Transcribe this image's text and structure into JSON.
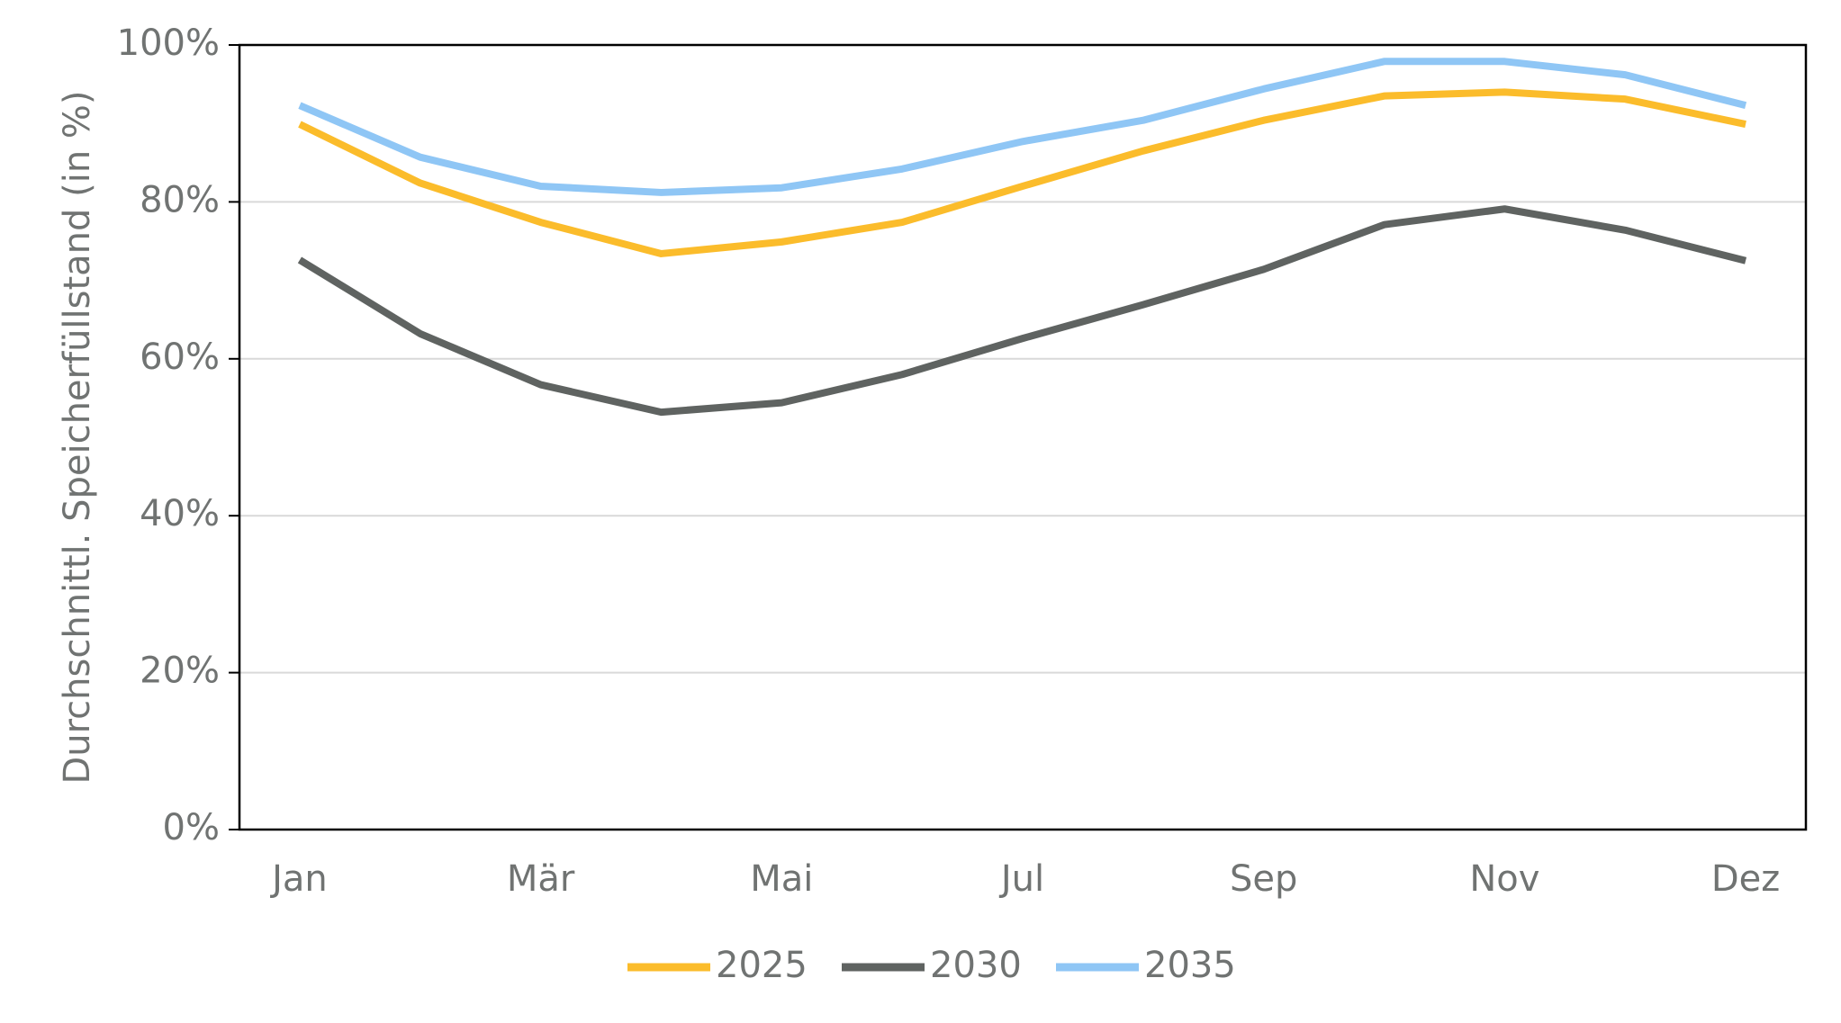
{
  "chart_data": {
    "type": "line",
    "y_axis_label": "Durchschnittl. Speicherfüllstand (in %)",
    "categories": [
      "Jan",
      null,
      "Mär",
      null,
      "Mai",
      null,
      "Jul",
      null,
      "Sep",
      null,
      "Nov",
      null,
      "Dez"
    ],
    "series": [
      {
        "name": "2025",
        "color": "#fbbc2b",
        "values": [
          89.9,
          82.4,
          77.4,
          73.4,
          74.9,
          77.4,
          82.0,
          86.5,
          90.4,
          93.5,
          94.0,
          93.1,
          89.9
        ]
      },
      {
        "name": "2030",
        "color": "#5f6361",
        "values": [
          72.6,
          63.2,
          56.7,
          53.2,
          54.4,
          58.0,
          62.6,
          66.9,
          71.4,
          77.1,
          79.1,
          76.4,
          72.5
        ]
      },
      {
        "name": "2035",
        "color": "#8fc6f5",
        "values": [
          92.3,
          85.7,
          82.0,
          81.2,
          81.8,
          84.2,
          87.7,
          90.4,
          94.4,
          97.9,
          97.9,
          96.2,
          92.3
        ]
      }
    ],
    "ylim": [
      0,
      100
    ],
    "yticks": [
      {
        "value": 0,
        "label": "0%"
      },
      {
        "value": 20,
        "label": "20%"
      },
      {
        "value": 40,
        "label": "40%"
      },
      {
        "value": 60,
        "label": "60%"
      },
      {
        "value": 80,
        "label": "80%"
      },
      {
        "value": 100,
        "label": "100%"
      }
    ],
    "grid": true,
    "legend": "bottom"
  }
}
